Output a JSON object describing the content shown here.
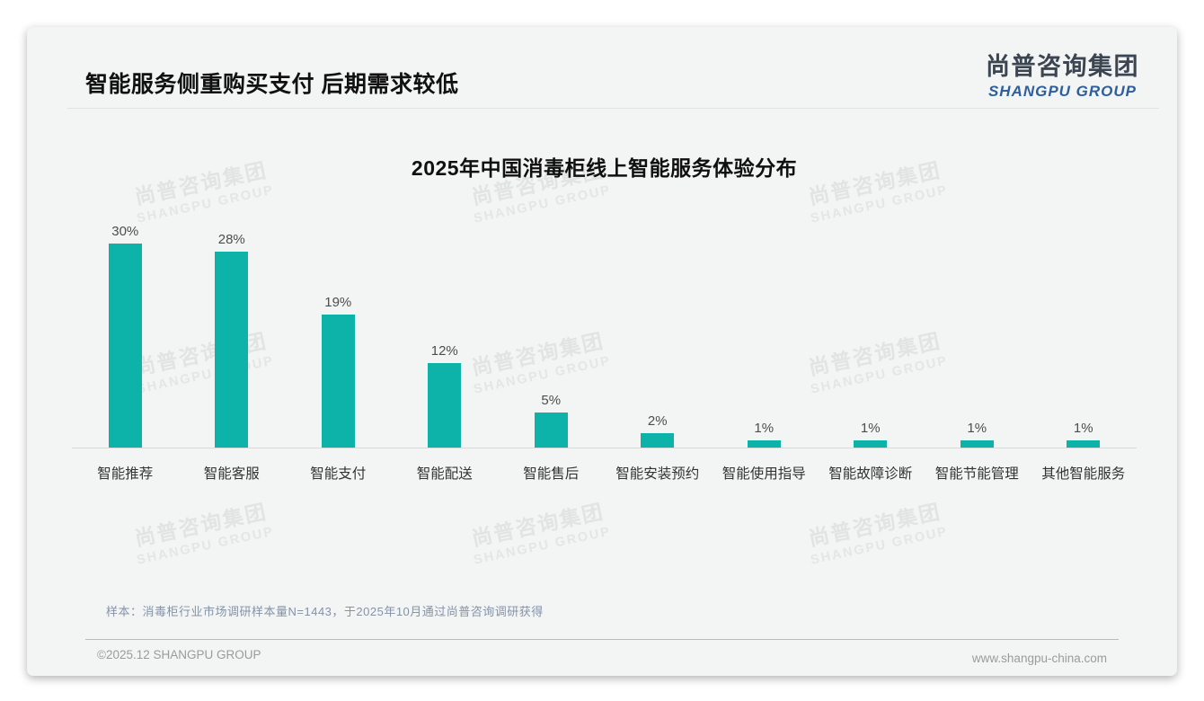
{
  "page": {
    "title": "智能服务侧重购买支付 后期需求较低",
    "logo": {
      "zh": "尚普咨询集团",
      "en": "SHANGPU GROUP"
    },
    "watermark": {
      "line1": "尚普咨询集团",
      "line2": "SHANGPU GROUP"
    },
    "footer": {
      "note": "样本：消毒柜行业市场调研样本量N=1443，于2025年10月通过尚普咨询调研获得",
      "copyright": "©2025.12 SHANGPU GROUP",
      "website": "www.shangpu-china.com"
    }
  },
  "chart_data": {
    "type": "bar",
    "title": "2025年中国消毒柜线上智能服务体验分布",
    "categories": [
      "智能推荐",
      "智能客服",
      "智能支付",
      "智能配送",
      "智能售后",
      "智能安装预约",
      "智能使用指导",
      "智能故障诊断",
      "智能节能管理",
      "其他智能服务"
    ],
    "values": [
      30,
      28,
      19,
      12,
      5,
      2,
      1,
      1,
      1,
      1
    ],
    "value_labels": [
      "30%",
      "28%",
      "19%",
      "12%",
      "5%",
      "2%",
      "1%",
      "1%",
      "1%",
      "1%"
    ],
    "unit": "%",
    "bar_color": "#0db2a8",
    "xlabel": "",
    "ylabel": "",
    "ylim": [
      0,
      32
    ],
    "grid": false,
    "legend": false,
    "value_labels_position": "above-bars"
  }
}
